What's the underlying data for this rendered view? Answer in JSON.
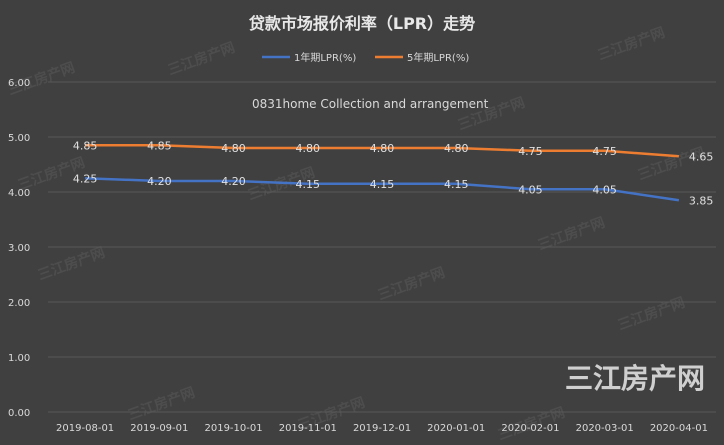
{
  "chart_data": {
    "type": "line",
    "title": "贷款市场报价利率（LPR）走势",
    "annotation": "0831home Collection and arrangement",
    "categories": [
      "2019-08-01",
      "2019-09-01",
      "2019-10-01",
      "2019-11-01",
      "2019-12-01",
      "2020-01-01",
      "2020-02-01",
      "2020-03-01",
      "2020-04-01"
    ],
    "series": [
      {
        "name": "1年期LPR(%)",
        "color": "#4472C4",
        "values": [
          4.25,
          4.2,
          4.2,
          4.15,
          4.15,
          4.15,
          4.05,
          4.05,
          3.85
        ]
      },
      {
        "name": "5年期LPR(%)",
        "color": "#ED7D31",
        "values": [
          4.85,
          4.85,
          4.8,
          4.8,
          4.8,
          4.8,
          4.75,
          4.75,
          4.65
        ]
      }
    ],
    "ylim": [
      0,
      6
    ],
    "yticks": [
      "0.00",
      "1.00",
      "2.00",
      "3.00",
      "4.00",
      "5.00",
      "6.00"
    ],
    "grid": true,
    "legend": "top-center",
    "watermark": "三江房产网"
  }
}
